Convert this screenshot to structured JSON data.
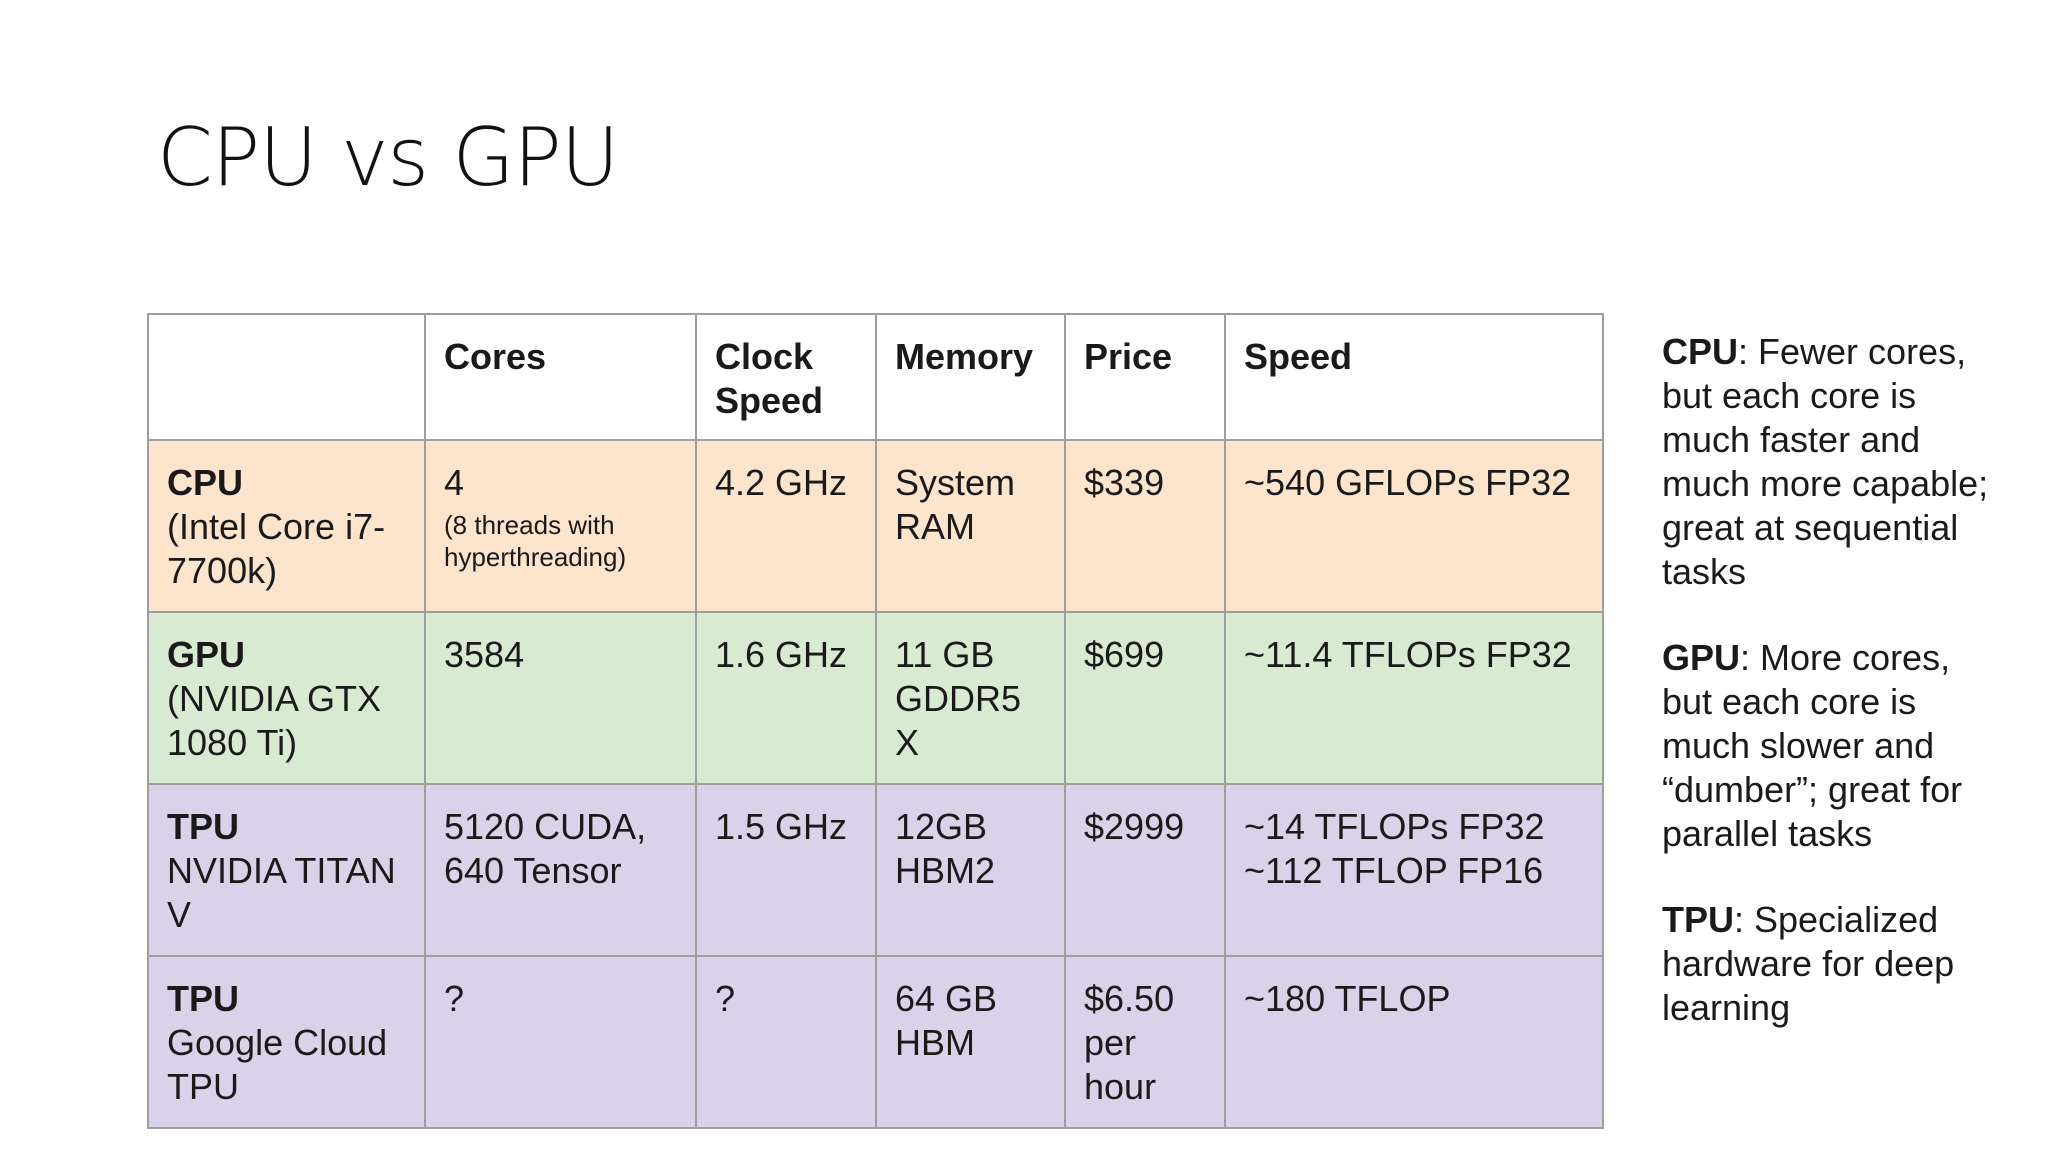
{
  "title": "CPU vs GPU",
  "table": {
    "headers": [
      "",
      "Cores",
      "Clock\nSpeed",
      "Memory",
      "Price",
      "Speed"
    ],
    "rows": [
      {
        "key": "cpu",
        "name": "CPU",
        "desc": "(Intel Core i7-7700k)",
        "cores": "4",
        "cores_note": "(8 threads with hyperthreading)",
        "clock": "4.2 GHz",
        "memory": "System RAM",
        "price": "$339",
        "speed": [
          "~540 GFLOPs FP32"
        ]
      },
      {
        "key": "gpu",
        "name": "GPU",
        "desc": "(NVIDIA GTX 1080 Ti)",
        "cores": "3584",
        "cores_note": "",
        "clock": "1.6 GHz",
        "memory": "11 GB GDDR5 X",
        "price": "$699",
        "speed": [
          "~11.4 TFLOPs FP32"
        ]
      },
      {
        "key": "tpu",
        "name": "TPU",
        "desc": "NVIDIA TITAN V",
        "cores": "5120 CUDA, 640 Tensor",
        "cores_note": "",
        "clock": "1.5 GHz",
        "memory": "12GB HBM2",
        "price": "$2999",
        "speed": [
          "~14 TFLOPs FP32",
          "~112 TFLOP FP16"
        ]
      },
      {
        "key": "cloud",
        "name": "TPU",
        "desc": "Google Cloud TPU",
        "cores": "?",
        "cores_note": "",
        "clock": "?",
        "memory": "64 GB HBM",
        "price": "$6.50 per hour",
        "speed": [
          "~180 TFLOP"
        ]
      }
    ]
  },
  "notes": [
    {
      "term": "CPU",
      "text": ": Fewer cores, but each core is much faster and much more capable; great at sequential tasks"
    },
    {
      "term": "GPU",
      "text": ": More cores, but each core is much slower and “dumber”; great for parallel tasks"
    },
    {
      "term": "TPU",
      "text": ": Specialized hardware for deep learning"
    }
  ]
}
